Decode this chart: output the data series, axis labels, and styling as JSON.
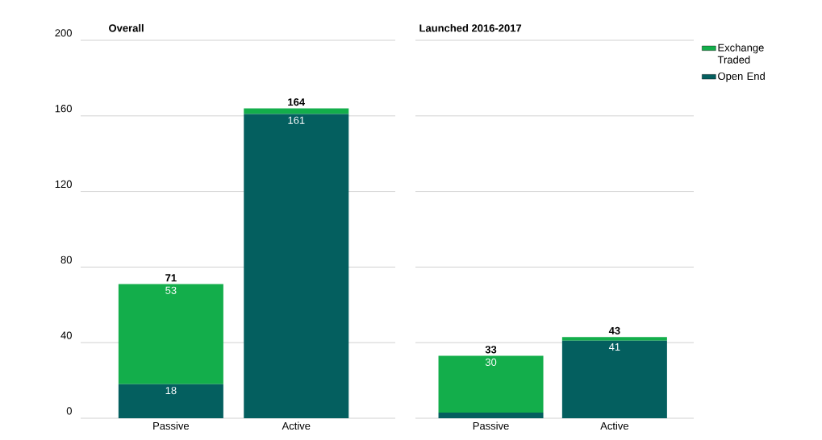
{
  "chart_data": [
    {
      "type": "bar",
      "title": "Overall",
      "categories": [
        "Passive",
        "Active"
      ],
      "stacked": true,
      "grid": "y",
      "ylim": [
        0,
        200
      ],
      "yticks": [
        0,
        40,
        80,
        120,
        160,
        200
      ],
      "series": [
        {
          "color": "#045f5f",
          "values": [
            18,
            161
          ],
          "value_labels": [
            "18",
            "161"
          ]
        },
        {
          "color": "#13ae4b",
          "values": [
            53,
            3
          ],
          "value_labels": [
            "53",
            null
          ]
        }
      ],
      "totals": [
        "71",
        "164"
      ]
    },
    {
      "type": "bar",
      "title": "Launched 2016-2017",
      "categories": [
        "Passive",
        "Active"
      ],
      "stacked": true,
      "grid": "y",
      "ylim": [
        0,
        200
      ],
      "yticks": [
        0,
        40,
        80,
        120,
        160,
        200
      ],
      "tick_labels": "x",
      "legend": "top right",
      "series": [
        {
          "name": "Open End",
          "color": "#045f5f",
          "values": [
            3,
            41
          ],
          "value_labels": [
            null,
            "41"
          ]
        },
        {
          "name": "Exchange Traded",
          "color": "#13ae4b",
          "values": [
            30,
            2
          ],
          "value_labels": [
            "30",
            null
          ]
        }
      ],
      "totals": [
        "33",
        "43"
      ]
    }
  ]
}
